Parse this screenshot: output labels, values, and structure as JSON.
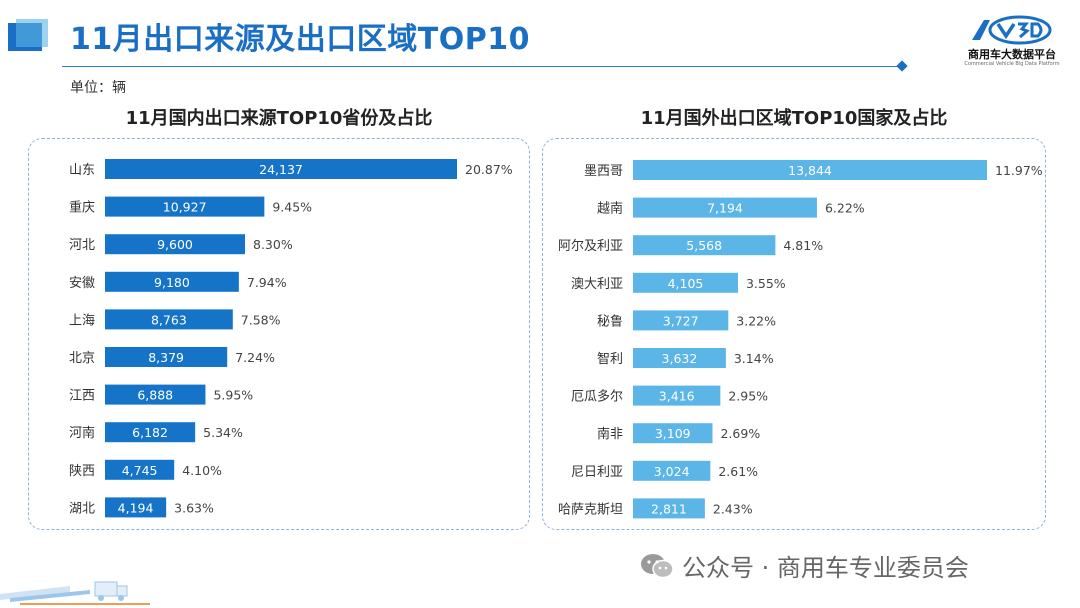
{
  "page": {
    "title": "11月出口来源及出口区域TOP10",
    "unit": "单位：辆",
    "logo_text": "商用车大数据平台",
    "logo_sub": "Commercial Vehicle Big Data Platform",
    "footer": "公众号 · 商用车专业委员会"
  },
  "colors": {
    "title": "#1a6fc4",
    "domestic_bar": "#1574c8",
    "foreign_bar": "#5bb5e6"
  },
  "chart_data": [
    {
      "type": "bar",
      "orientation": "horizontal",
      "title": "11月国内出口来源TOP10省份及占比",
      "categories": [
        "山东",
        "重庆",
        "河北",
        "安徽",
        "上海",
        "北京",
        "江西",
        "河南",
        "陕西",
        "湖北"
      ],
      "values": [
        24137,
        10927,
        9600,
        9180,
        8763,
        8379,
        6888,
        6182,
        4745,
        4194
      ],
      "value_labels": [
        "24,137",
        "10,927",
        "9,600",
        "9,180",
        "8,763",
        "8,379",
        "6,888",
        "6,182",
        "4,745",
        "4,194"
      ],
      "shares": [
        "20.87%",
        "9.45%",
        "8.30%",
        "7.94%",
        "7.58%",
        "7.24%",
        "5.95%",
        "5.34%",
        "4.10%",
        "3.63%"
      ],
      "xlim": [
        0,
        24137
      ]
    },
    {
      "type": "bar",
      "orientation": "horizontal",
      "title": "11月国外出口区域TOP10国家及占比",
      "categories": [
        "墨西哥",
        "越南",
        "阿尔及利亚",
        "澳大利亚",
        "秘鲁",
        "智利",
        "厄瓜多尔",
        "南非",
        "尼日利亚",
        "哈萨克斯坦"
      ],
      "values": [
        13844,
        7194,
        5568,
        4105,
        3727,
        3632,
        3416,
        3109,
        3024,
        2811
      ],
      "value_labels": [
        "13,844",
        "7,194",
        "5,568",
        "4,105",
        "3,727",
        "3,632",
        "3,416",
        "3,109",
        "3,024",
        "2,811"
      ],
      "shares": [
        "11.97%",
        "6.22%",
        "4.81%",
        "3.55%",
        "3.22%",
        "3.14%",
        "2.95%",
        "2.69%",
        "2.61%",
        "2.43%"
      ],
      "xlim": [
        0,
        13844
      ]
    }
  ]
}
